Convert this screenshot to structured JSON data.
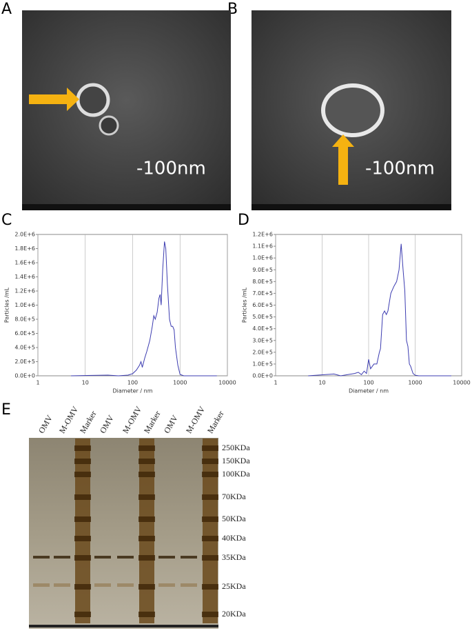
{
  "panels": [
    "A",
    "B",
    "C",
    "D",
    "E"
  ],
  "tem": [
    {
      "scale": "-100nm"
    },
    {
      "scale": "-100nm"
    }
  ],
  "chart_data": [
    {
      "type": "line",
      "xlabel": "Diameter / nm",
      "ylabel": "Particles /mL",
      "xscale": "log",
      "grid": true,
      "color": "#3b3bb0",
      "xlim": [
        1,
        10000
      ],
      "xticks": [
        1,
        10,
        100,
        1000,
        10000
      ],
      "ylim": [
        0,
        2000000
      ],
      "yticks": [
        {
          "value": 0,
          "label": "0.0E+0"
        },
        {
          "value": 200000,
          "label": "2.0E+5"
        },
        {
          "value": 400000,
          "label": "4.0E+5"
        },
        {
          "value": 600000,
          "label": "6.0E+5"
        },
        {
          "value": 800000,
          "label": "8.0E+5"
        },
        {
          "value": 1000000,
          "label": "1.0E+6"
        },
        {
          "value": 1200000,
          "label": "1.2E+6"
        },
        {
          "value": 1400000,
          "label": "1.4E+6"
        },
        {
          "value": 1600000,
          "label": "1.6E+6"
        },
        {
          "value": 1800000,
          "label": "1.8E+6"
        },
        {
          "value": 2000000,
          "label": "2.0E+6"
        }
      ],
      "x": [
        5,
        30,
        50,
        80,
        100,
        120,
        140,
        150,
        160,
        180,
        200,
        230,
        260,
        280,
        300,
        330,
        360,
        380,
        400,
        430,
        470,
        500,
        540,
        600,
        650,
        700,
        750,
        800,
        900,
        1000,
        1200,
        6000
      ],
      "values": [
        0,
        10000,
        0,
        10000,
        30000,
        80000,
        150000,
        200000,
        120000,
        250000,
        350000,
        500000,
        700000,
        850000,
        800000,
        900000,
        1100000,
        1150000,
        1000000,
        1500000,
        1900000,
        1800000,
        1300000,
        800000,
        700000,
        700000,
        650000,
        400000,
        150000,
        20000,
        0,
        0
      ]
    },
    {
      "type": "line",
      "xlabel": "Diameter / nm",
      "ylabel": "Particles /mL",
      "xscale": "log",
      "grid": true,
      "color": "#3b3bb0",
      "xlim": [
        1,
        10000
      ],
      "xticks": [
        1,
        10,
        100,
        1000,
        10000
      ],
      "ylim": [
        0,
        1200000
      ],
      "yticks": [
        {
          "value": 0,
          "label": "0.0E+0"
        },
        {
          "value": 100000,
          "label": "1.0E+5"
        },
        {
          "value": 200000,
          "label": "2.0E+5"
        },
        {
          "value": 300000,
          "label": "3.0E+5"
        },
        {
          "value": 400000,
          "label": "4.0E+5"
        },
        {
          "value": 500000,
          "label": "5.0E+5"
        },
        {
          "value": 600000,
          "label": "6.0E+5"
        },
        {
          "value": 700000,
          "label": "7.0E+5"
        },
        {
          "value": 800000,
          "label": "8.0E+5"
        },
        {
          "value": 900000,
          "label": "9.0E+5"
        },
        {
          "value": 1000000,
          "label": "1.0E+6"
        },
        {
          "value": 1100000,
          "label": "1.1E+6"
        },
        {
          "value": 1200000,
          "label": "1.2E+6"
        }
      ],
      "x": [
        5,
        18,
        25,
        50,
        60,
        70,
        80,
        90,
        100,
        110,
        130,
        150,
        170,
        180,
        200,
        220,
        240,
        260,
        300,
        350,
        400,
        450,
        500,
        550,
        600,
        650,
        700,
        750,
        800,
        900,
        1000,
        1200,
        6000
      ],
      "values": [
        0,
        15000,
        0,
        20000,
        30000,
        10000,
        40000,
        20000,
        140000,
        60000,
        100000,
        100000,
        200000,
        230000,
        520000,
        550000,
        520000,
        550000,
        700000,
        760000,
        800000,
        900000,
        1120000,
        900000,
        720000,
        300000,
        250000,
        100000,
        80000,
        20000,
        5000,
        0,
        0
      ]
    }
  ],
  "gel": {
    "lanes": [
      "OMV",
      "M-OMV",
      "Marker",
      "OMV",
      "M-OMV",
      "Marker",
      "OMV",
      "M-OMV",
      "Marker"
    ],
    "markers": [
      "250KDa",
      "150KDa",
      "100KDa",
      "70KDa",
      "50KDa",
      "40KDa",
      "35KDa",
      "25KDa",
      "20KDa"
    ]
  }
}
